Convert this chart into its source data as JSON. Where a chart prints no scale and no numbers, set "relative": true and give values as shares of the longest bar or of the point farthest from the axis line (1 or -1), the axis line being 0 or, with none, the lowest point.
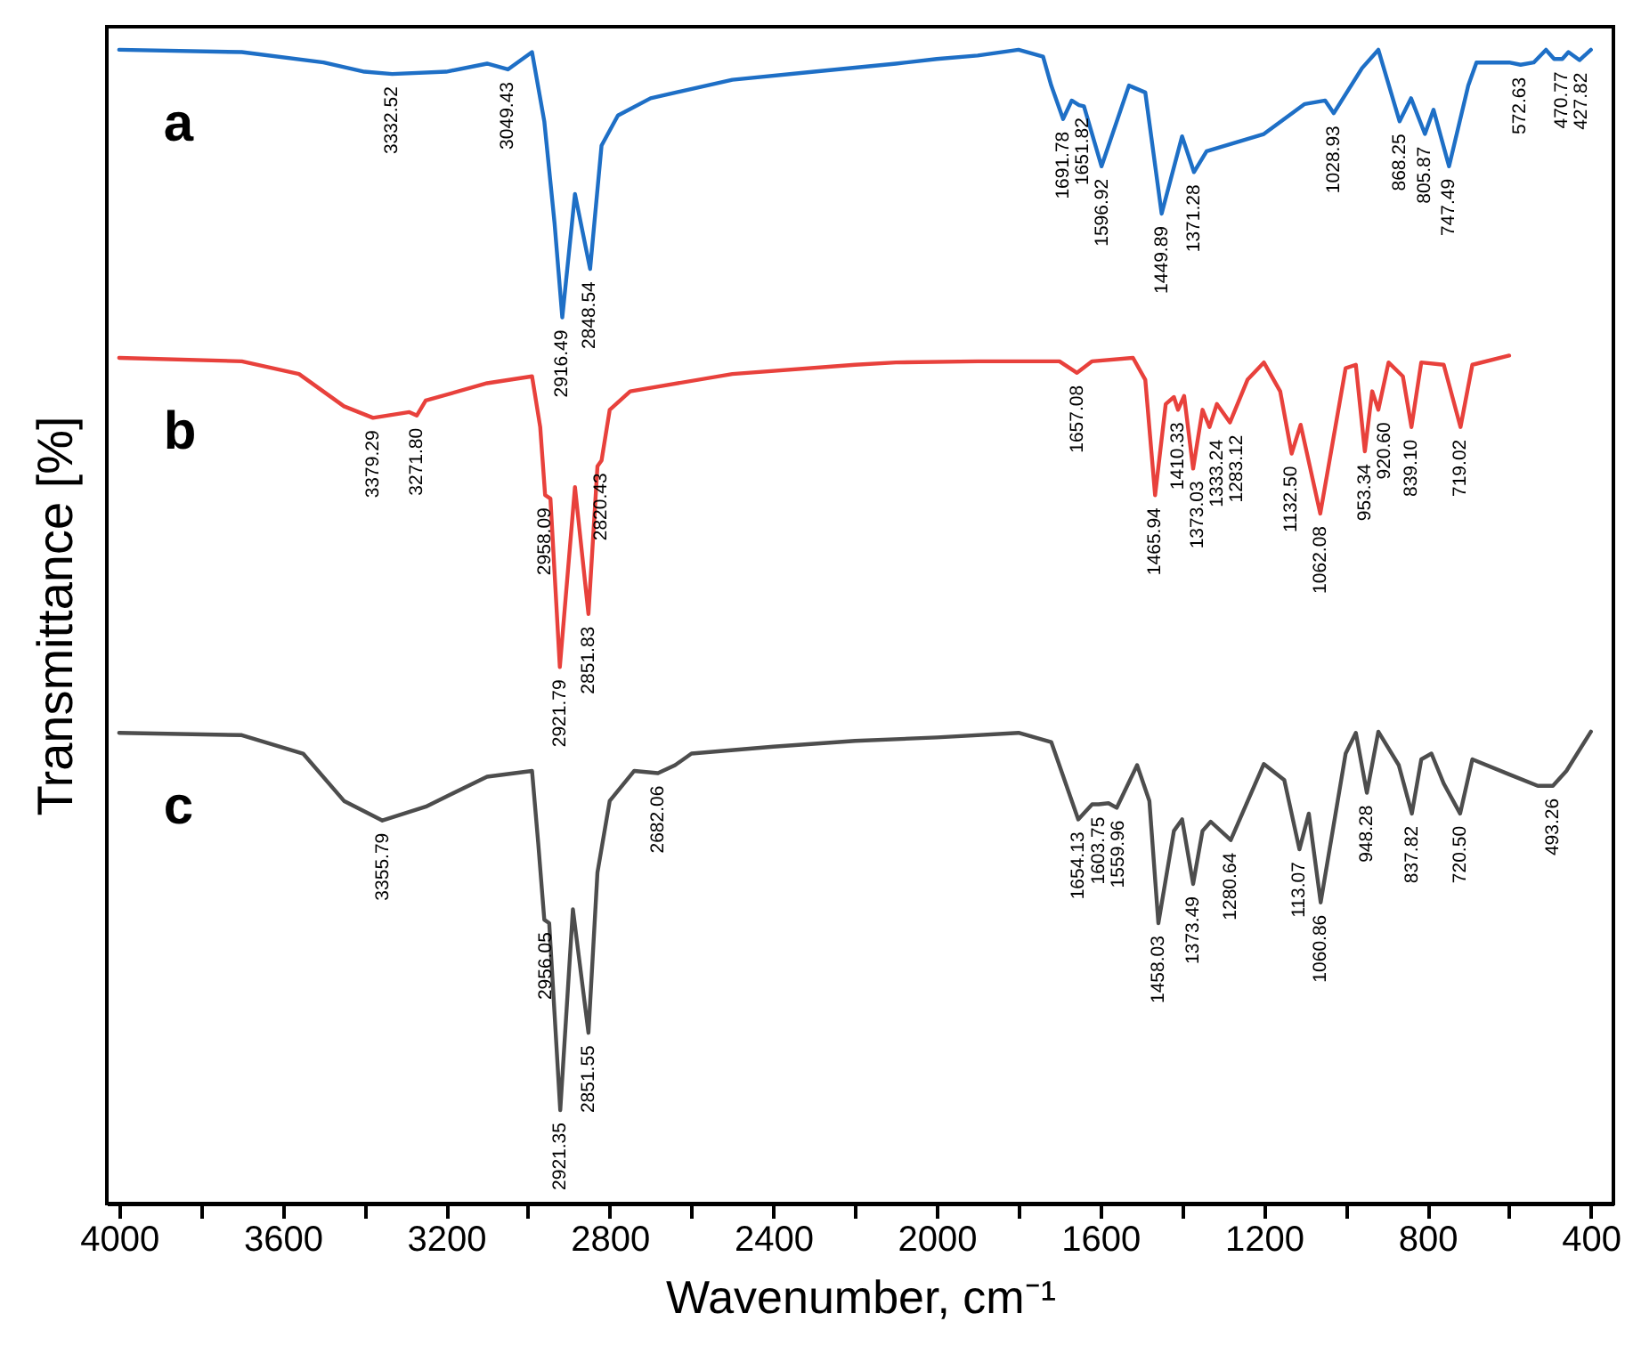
{
  "chart_data": {
    "type": "line",
    "relative": true,
    "xlabel": "Wavenumber, cm⁻¹",
    "ylabel": "Transmittance [%]",
    "xlim": [
      4030,
      345
    ],
    "xticks": [
      4000,
      {
        "value": 3800,
        "label": null
      },
      3600,
      {
        "value": 3400,
        "label": null
      },
      3200,
      {
        "value": 3000,
        "label": null
      },
      2800,
      {
        "value": 2600,
        "label": null
      },
      2400,
      {
        "value": 2200,
        "label": null
      },
      2000,
      {
        "value": 1800,
        "label": null
      },
      1600,
      {
        "value": 1400,
        "label": null
      },
      1200,
      {
        "value": 1000,
        "label": null
      },
      800,
      {
        "value": 600,
        "label": null
      },
      400
    ],
    "tick_labels": "x",
    "grid": false,
    "series": [
      {
        "name": "a",
        "color": "#1e6fc6",
        "x": [
          4000,
          3700,
          3500,
          3400,
          3332,
          3200,
          3100,
          3049,
          2990,
          2960,
          2935,
          2916,
          2885,
          2848,
          2820,
          2780,
          2700,
          2500,
          2300,
          2100,
          2000,
          1900,
          1800,
          1740,
          1720,
          1691,
          1670,
          1652,
          1640,
          1597,
          1530,
          1490,
          1450,
          1400,
          1371,
          1340,
          1200,
          1100,
          1050,
          1029,
          960,
          920,
          868,
          840,
          806,
          785,
          747,
          700,
          680,
          600,
          572,
          540,
          510,
          490,
          470,
          455,
          428,
          400
        ],
        "values": [
          1.0,
          0.998,
          0.989,
          0.981,
          0.979,
          0.981,
          0.988,
          0.983,
          0.998,
          0.938,
          0.85,
          0.768,
          0.875,
          0.81,
          0.917,
          0.943,
          0.958,
          0.974,
          0.981,
          0.988,
          0.992,
          0.995,
          1.0,
          0.994,
          0.969,
          0.94,
          0.956,
          0.952,
          0.951,
          0.899,
          0.969,
          0.963,
          0.858,
          0.925,
          0.894,
          0.912,
          0.927,
          0.953,
          0.956,
          0.945,
          0.984,
          1.0,
          0.938,
          0.958,
          0.927,
          0.948,
          0.899,
          0.969,
          0.989,
          0.989,
          0.987,
          0.989,
          1.0,
          0.992,
          0.992,
          0.998,
          0.991,
          1.0
        ]
      },
      {
        "name": "b",
        "color": "#e8413c",
        "x": [
          4000,
          3700,
          3560,
          3450,
          3379,
          3290,
          3272,
          3250,
          3100,
          2990,
          2970,
          2958,
          2945,
          2922,
          2885,
          2852,
          2830,
          2820,
          2800,
          2750,
          2500,
          2200,
          2100,
          1900,
          1700,
          1657,
          1620,
          1520,
          1490,
          1466,
          1440,
          1420,
          1410,
          1395,
          1373,
          1350,
          1333,
          1315,
          1283,
          1240,
          1200,
          1160,
          1132,
          1110,
          1062,
          1000,
          975,
          953,
          935,
          920,
          895,
          860,
          839,
          815,
          760,
          719,
          690,
          600
        ],
        "values": [
          0.733,
          0.73,
          0.719,
          0.691,
          0.681,
          0.686,
          0.683,
          0.696,
          0.711,
          0.717,
          0.673,
          0.614,
          0.611,
          0.465,
          0.621,
          0.511,
          0.639,
          0.644,
          0.688,
          0.704,
          0.719,
          0.727,
          0.729,
          0.73,
          0.73,
          0.72,
          0.73,
          0.733,
          0.714,
          0.614,
          0.693,
          0.699,
          0.688,
          0.7,
          0.637,
          0.688,
          0.673,
          0.693,
          0.677,
          0.714,
          0.729,
          0.704,
          0.65,
          0.675,
          0.598,
          0.724,
          0.727,
          0.652,
          0.704,
          0.688,
          0.729,
          0.717,
          0.673,
          0.729,
          0.727,
          0.673,
          0.727,
          0.735
        ]
      },
      {
        "name": "c",
        "color": "#4d4d4d",
        "x": [
          4000,
          3700,
          3550,
          3450,
          3356,
          3250,
          3100,
          2990,
          2975,
          2960,
          2948,
          2921,
          2890,
          2852,
          2830,
          2800,
          2740,
          2682,
          2640,
          2600,
          2400,
          2200,
          2000,
          1800,
          1720,
          1654,
          1620,
          1604,
          1580,
          1560,
          1510,
          1480,
          1458,
          1420,
          1400,
          1373,
          1350,
          1330,
          1281,
          1200,
          1150,
          1113,
          1090,
          1061,
          1000,
          975,
          948,
          920,
          870,
          838,
          815,
          790,
          760,
          720,
          690,
          600,
          530,
          493,
          460,
          400
        ],
        "values": [
          0.408,
          0.406,
          0.39,
          0.349,
          0.332,
          0.344,
          0.37,
          0.375,
          0.313,
          0.246,
          0.243,
          0.081,
          0.255,
          0.148,
          0.287,
          0.349,
          0.375,
          0.373,
          0.38,
          0.39,
          0.396,
          0.401,
          0.404,
          0.408,
          0.4,
          0.333,
          0.346,
          0.346,
          0.347,
          0.343,
          0.38,
          0.349,
          0.243,
          0.323,
          0.333,
          0.277,
          0.323,
          0.331,
          0.315,
          0.381,
          0.367,
          0.307,
          0.338,
          0.261,
          0.39,
          0.408,
          0.356,
          0.409,
          0.38,
          0.338,
          0.385,
          0.39,
          0.364,
          0.338,
          0.385,
          0.372,
          0.362,
          0.362,
          0.375,
          0.409
        ]
      }
    ],
    "annotations": [
      {
        "text": "3332.52",
        "x": 3332.52,
        "y": 0.979
      },
      {
        "text": "3049.43",
        "x": 3049.43,
        "y": 0.983
      },
      {
        "text": "2916.49",
        "x": 2916.49,
        "y": 0.768
      },
      {
        "text": "2848.54",
        "x": 2848.54,
        "y": 0.81
      },
      {
        "text": "1691.78",
        "x": 1691.78,
        "y": 0.94
      },
      {
        "text": "1651.82",
        "x": 1651.82,
        "y": 0.952
      },
      {
        "text": "1596.92",
        "x": 1596.92,
        "y": 0.899
      },
      {
        "text": "1449.89",
        "x": 1449.89,
        "y": 0.858
      },
      {
        "text": "1371.28",
        "x": 1371.28,
        "y": 0.894
      },
      {
        "text": "1028.93",
        "x": 1028.93,
        "y": 0.945
      },
      {
        "text": "868.25",
        "x": 868.25,
        "y": 0.938
      },
      {
        "text": "805.87",
        "x": 805.87,
        "y": 0.927
      },
      {
        "text": "747.49",
        "x": 747.49,
        "y": 0.899
      },
      {
        "text": "572.63",
        "x": 572.63,
        "y": 0.987
      },
      {
        "text": "470.77",
        "x": 470.77,
        "y": 0.992
      },
      {
        "text": "427.82",
        "x": 427.82,
        "y": 0.991
      },
      {
        "text": "3379.29",
        "x": 3379.29,
        "y": 0.681
      },
      {
        "text": "3271.80",
        "x": 3271.8,
        "y": 0.683
      },
      {
        "text": "2958.09",
        "x": 2958.09,
        "y": 0.614
      },
      {
        "text": "2921.79",
        "x": 2921.79,
        "y": 0.465
      },
      {
        "text": "2851.83",
        "x": 2851.83,
        "y": 0.511
      },
      {
        "text": "2820.43",
        "x": 2820.43,
        "y": 0.644
      },
      {
        "text": "1657.08",
        "x": 1657.08,
        "y": 0.72
      },
      {
        "text": "1465.94",
        "x": 1465.94,
        "y": 0.614
      },
      {
        "text": "1410.33",
        "x": 1410.33,
        "y": 0.688
      },
      {
        "text": "1373.03",
        "x": 1373.03,
        "y": 0.637
      },
      {
        "text": "1333.24",
        "x": 1333.24,
        "y": 0.673
      },
      {
        "text": "1283.12",
        "x": 1283.12,
        "y": 0.677
      },
      {
        "text": "1132.50",
        "x": 1132.5,
        "y": 0.65
      },
      {
        "text": "1062.08",
        "x": 1062.08,
        "y": 0.598
      },
      {
        "text": "953.34",
        "x": 953.34,
        "y": 0.652
      },
      {
        "text": "920.60",
        "x": 920.6,
        "y": 0.688
      },
      {
        "text": "839.10",
        "x": 839.1,
        "y": 0.673
      },
      {
        "text": "719.02",
        "x": 719.02,
        "y": 0.673
      },
      {
        "text": "3355.79",
        "x": 3355.79,
        "y": 0.332
      },
      {
        "text": "2956.05",
        "x": 2956.05,
        "y": 0.246
      },
      {
        "text": "2921.35",
        "x": 2921.35,
        "y": 0.081
      },
      {
        "text": "2851.55",
        "x": 2851.55,
        "y": 0.148
      },
      {
        "text": "2682.06",
        "x": 2682.06,
        "y": 0.373
      },
      {
        "text": "1654.13",
        "x": 1654.13,
        "y": 0.333
      },
      {
        "text": "1603.75",
        "x": 1603.75,
        "y": 0.346
      },
      {
        "text": "1559.96",
        "x": 1559.96,
        "y": 0.343
      },
      {
        "text": "1458.03",
        "x": 1458.03,
        "y": 0.243
      },
      {
        "text": "1373.49",
        "x": 1373.49,
        "y": 0.277
      },
      {
        "text": "1280.64",
        "x": 1280.64,
        "y": 0.315
      },
      {
        "text": "113.07",
        "x": 1113.07,
        "y": 0.307
      },
      {
        "text": "1060.86",
        "x": 1060.86,
        "y": 0.261
      },
      {
        "text": "948.28",
        "x": 948.28,
        "y": 0.356
      },
      {
        "text": "837.82",
        "x": 837.82,
        "y": 0.338
      },
      {
        "text": "720.50",
        "x": 720.5,
        "y": 0.338
      },
      {
        "text": "493.26",
        "x": 493.26,
        "y": 0.362
      }
    ]
  }
}
